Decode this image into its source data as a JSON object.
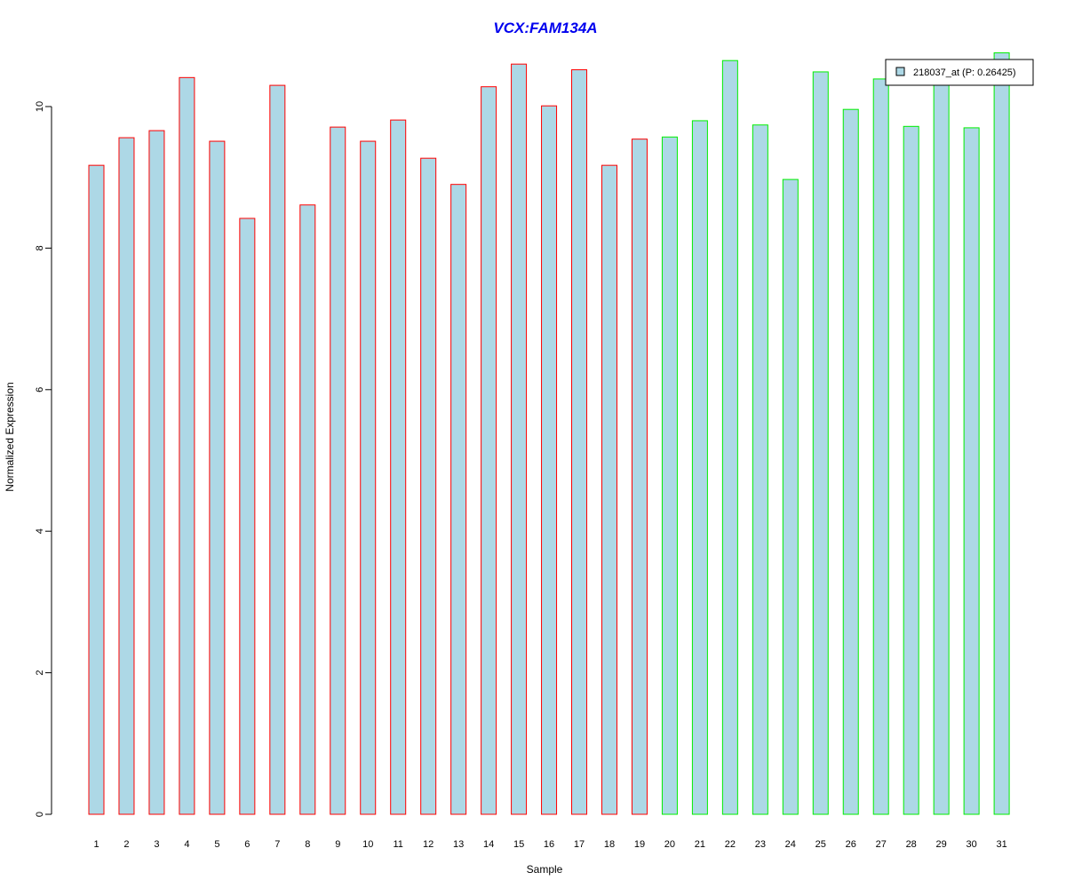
{
  "chart_data": {
    "type": "bar",
    "title": "VCX:FAM134A",
    "xlabel": "Sample",
    "ylabel": "Normalized Expression",
    "ylim": [
      0,
      10.9
    ],
    "yticks": [
      "0",
      "2",
      "4",
      "6",
      "8",
      "10"
    ],
    "grid": false,
    "legend": {
      "placement": "top-right",
      "entry": "218037_at (P: 0.26425)",
      "swatch_color": "#add8e6"
    },
    "bar_fill": "#add8e6",
    "group_colors": {
      "group1": "#ff0000",
      "group2": "#00ee00"
    },
    "categories": [
      "1",
      "2",
      "3",
      "4",
      "5",
      "6",
      "7",
      "8",
      "9",
      "10",
      "11",
      "12",
      "13",
      "14",
      "15",
      "16",
      "17",
      "18",
      "19",
      "20",
      "21",
      "22",
      "23",
      "24",
      "25",
      "26",
      "27",
      "28",
      "29",
      "30",
      "31"
    ],
    "values": [
      9.17,
      9.56,
      9.66,
      10.41,
      9.51,
      8.42,
      10.3,
      8.61,
      9.71,
      9.51,
      9.81,
      9.27,
      8.9,
      10.28,
      10.6,
      10.01,
      10.52,
      9.17,
      9.54,
      9.57,
      9.8,
      10.65,
      9.74,
      8.97,
      10.49,
      9.96,
      10.39,
      9.72,
      10.36,
      9.7,
      10.76
    ],
    "groups": [
      1,
      1,
      1,
      1,
      1,
      1,
      1,
      1,
      1,
      1,
      1,
      1,
      1,
      1,
      1,
      1,
      1,
      1,
      1,
      2,
      2,
      2,
      2,
      2,
      2,
      2,
      2,
      2,
      2,
      2,
      2
    ]
  }
}
